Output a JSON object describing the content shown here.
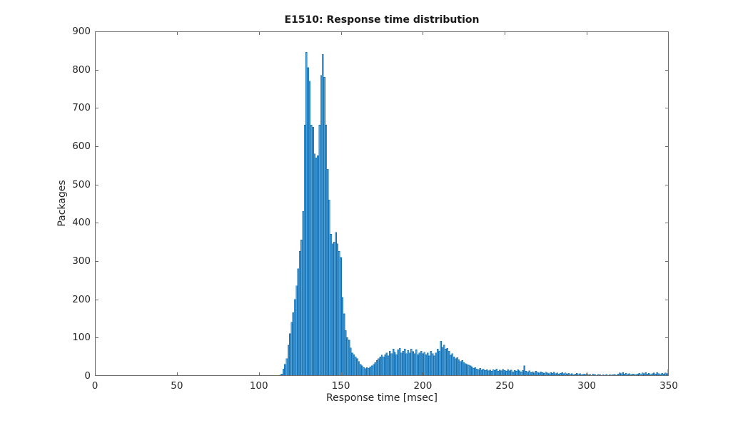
{
  "figure": {
    "title": "E1510: Response time distribution",
    "xlabel": "Response time [msec]",
    "ylabel": "Packages"
  },
  "chart_data": {
    "type": "bar",
    "subtype": "histogram",
    "title": "E1510: Response time distribution",
    "xlabel": "Response time [msec]",
    "ylabel": "Packages",
    "xlim": [
      0,
      350
    ],
    "ylim": [
      0,
      900
    ],
    "x_ticks": [
      0,
      50,
      100,
      150,
      200,
      250,
      300,
      350
    ],
    "y_ticks": [
      0,
      100,
      200,
      300,
      400,
      500,
      600,
      700,
      800,
      900
    ],
    "grid": false,
    "legend": false,
    "bin_width_msec": 1,
    "bin_start_msec": 112,
    "bar_fill": "#4fa1d8",
    "bar_edge": "#1471b3",
    "axis_color": "#6e6e6e",
    "tick_direction": "in",
    "box": true,
    "values": [
      0,
      2,
      5,
      18,
      30,
      45,
      80,
      110,
      140,
      165,
      200,
      235,
      280,
      325,
      355,
      430,
      655,
      845,
      805,
      770,
      655,
      650,
      580,
      570,
      575,
      655,
      785,
      840,
      780,
      655,
      540,
      460,
      370,
      345,
      350,
      375,
      345,
      325,
      310,
      205,
      162,
      119,
      100,
      93,
      73,
      60,
      55,
      50,
      45,
      38,
      30,
      26,
      22,
      19,
      22,
      20,
      24,
      26,
      30,
      35,
      40,
      45,
      50,
      54,
      50,
      55,
      60,
      52,
      65,
      58,
      70,
      62,
      55,
      68,
      72,
      60,
      65,
      70,
      58,
      66,
      60,
      70,
      64,
      58,
      68,
      55,
      60,
      65,
      58,
      62,
      55,
      60,
      52,
      65,
      58,
      52,
      60,
      70,
      65,
      91,
      75,
      80,
      70,
      72,
      65,
      54,
      58,
      50,
      45,
      48,
      42,
      38,
      40,
      35,
      32,
      30,
      28,
      26,
      24,
      20,
      22,
      18,
      16,
      20,
      15,
      18,
      14,
      16,
      13,
      15,
      12,
      16,
      14,
      18,
      12,
      15,
      13,
      17,
      14,
      12,
      16,
      13,
      15,
      11,
      14,
      12,
      16,
      13,
      11,
      14,
      26,
      12,
      10,
      13,
      9,
      11,
      8,
      12,
      10,
      8,
      11,
      9,
      7,
      10,
      8,
      6,
      9,
      7,
      10,
      6,
      8,
      5,
      7,
      9,
      6,
      8,
      5,
      7,
      4,
      6,
      3,
      5,
      7,
      4,
      6,
      3,
      5,
      4,
      6,
      3,
      4,
      0,
      5,
      3,
      0,
      4,
      3,
      0,
      3,
      0,
      4,
      0,
      3,
      2,
      3,
      4,
      0,
      5,
      8,
      6,
      9,
      5,
      7,
      4,
      6,
      3,
      5,
      4,
      3,
      5,
      7,
      4,
      8,
      6,
      9,
      5,
      7,
      4,
      6,
      8,
      5,
      9,
      6,
      4,
      7,
      5,
      8,
      6,
      17
    ]
  }
}
